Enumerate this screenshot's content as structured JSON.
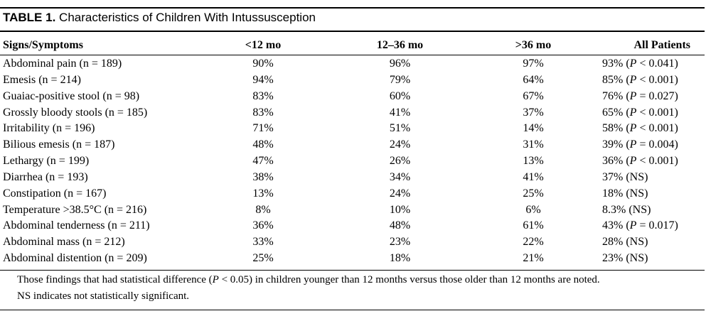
{
  "title": {
    "label": "TABLE 1.",
    "text": "Characteristics of Children With Intussusception"
  },
  "columns": [
    "Signs/Symptoms",
    "<12 mo",
    "12–36 mo",
    ">36 mo",
    "All Patients"
  ],
  "rows": [
    {
      "sign": "Abdominal pain (n = 189)",
      "lt12": "90%",
      "m12_36": "96%",
      "gt36": "97%",
      "all_pct": "93%",
      "p_pre": " (",
      "p_sym": "P",
      "p_post": " < 0.041)"
    },
    {
      "sign": "Emesis (n = 214)",
      "lt12": "94%",
      "m12_36": "79%",
      "gt36": "64%",
      "all_pct": "85%",
      "p_pre": " (",
      "p_sym": "P",
      "p_post": " < 0.001)"
    },
    {
      "sign": "Guaiac-positive stool (n = 98)",
      "lt12": "83%",
      "m12_36": "60%",
      "gt36": "67%",
      "all_pct": "76%",
      "p_pre": " (",
      "p_sym": "P",
      "p_post": " = 0.027)"
    },
    {
      "sign": "Grossly bloody stools (n = 185)",
      "lt12": "83%",
      "m12_36": "41%",
      "gt36": "37%",
      "all_pct": "65%",
      "p_pre": " (",
      "p_sym": "P",
      "p_post": " < 0.001)"
    },
    {
      "sign": "Irritability (n = 196)",
      "lt12": "71%",
      "m12_36": "51%",
      "gt36": "14%",
      "all_pct": "58%",
      "p_pre": " (",
      "p_sym": "P",
      "p_post": " < 0.001)"
    },
    {
      "sign": "Bilious emesis (n = 187)",
      "lt12": "48%",
      "m12_36": "24%",
      "gt36": "31%",
      "all_pct": "39%",
      "p_pre": " (",
      "p_sym": "P",
      "p_post": " = 0.004)"
    },
    {
      "sign": "Lethargy (n = 199)",
      "lt12": "47%",
      "m12_36": "26%",
      "gt36": "13%",
      "all_pct": "36%",
      "p_pre": " (",
      "p_sym": "P",
      "p_post": " < 0.001)"
    },
    {
      "sign": "Diarrhea (n = 193)",
      "lt12": "38%",
      "m12_36": "34%",
      "gt36": "41%",
      "all_pct": "37% (NS)",
      "p_pre": "",
      "p_sym": "",
      "p_post": ""
    },
    {
      "sign": "Constipation (n = 167)",
      "lt12": "13%",
      "m12_36": "24%",
      "gt36": "25%",
      "all_pct": "18% (NS)",
      "p_pre": "",
      "p_sym": "",
      "p_post": ""
    },
    {
      "sign": "Temperature >38.5°C (n = 216)",
      "lt12": "8%",
      "m12_36": "10%",
      "gt36": "6%",
      "all_pct": "8.3% (NS)",
      "p_pre": "",
      "p_sym": "",
      "p_post": ""
    },
    {
      "sign": "Abdominal tenderness (n = 211)",
      "lt12": "36%",
      "m12_36": "48%",
      "gt36": "61%",
      "all_pct": "43%",
      "p_pre": " (",
      "p_sym": "P",
      "p_post": " = 0.017)"
    },
    {
      "sign": "Abdominal mass (n = 212)",
      "lt12": "33%",
      "m12_36": "23%",
      "gt36": "22%",
      "all_pct": "28% (NS)",
      "p_pre": "",
      "p_sym": "",
      "p_post": ""
    },
    {
      "sign": "Abdominal distention (n = 209)",
      "lt12": "25%",
      "m12_36": "18%",
      "gt36": "21%",
      "all_pct": "23% (NS)",
      "p_pre": "",
      "p_sym": "",
      "p_post": ""
    }
  ],
  "footnote": {
    "line1_a": "Those findings that had statistical difference (",
    "line1_p": "P",
    "line1_b": " < 0.05) in children younger than 12 months versus those older than 12 months are noted.",
    "line2": "NS indicates not statistically significant."
  }
}
